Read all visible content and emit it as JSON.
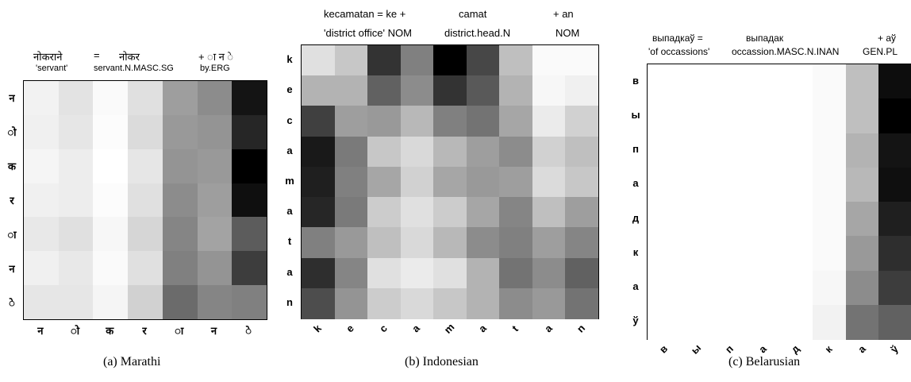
{
  "chart_data": [
    {
      "type": "heatmap",
      "caption": "(a) Marathi",
      "header": [
        {
          "big": "नोकराने",
          "small": "'servant'"
        },
        {
          "big": "=",
          "small": ""
        },
        {
          "big": "नोकर",
          "small": "servant.N.MASC.SG"
        },
        {
          "big": "+ ा न े",
          "small": "by.ERG"
        }
      ],
      "rows": [
        "न",
        "ो",
        "क",
        "र",
        "ा",
        "न",
        "े"
      ],
      "cols": [
        "न",
        "ो",
        "क",
        "र",
        "ा",
        "न",
        "े"
      ],
      "values": [
        [
          0.05,
          0.11,
          0.02,
          0.12,
          0.38,
          0.45,
          0.92
        ],
        [
          0.06,
          0.1,
          0.01,
          0.14,
          0.4,
          0.42,
          0.85
        ],
        [
          0.04,
          0.07,
          0.0,
          0.1,
          0.42,
          0.4,
          1.0
        ],
        [
          0.06,
          0.07,
          0.01,
          0.12,
          0.45,
          0.38,
          0.94
        ],
        [
          0.09,
          0.12,
          0.03,
          0.16,
          0.48,
          0.36,
          0.64
        ],
        [
          0.06,
          0.09,
          0.02,
          0.12,
          0.5,
          0.42,
          0.76
        ],
        [
          0.1,
          0.1,
          0.04,
          0.18,
          0.58,
          0.48,
          0.5
        ]
      ]
    },
    {
      "type": "heatmap",
      "caption": "(b) Indonesian",
      "header": [
        {
          "big": "kecamatan = ke +",
          "small": "'district office' NOM"
        },
        {
          "big": "camat",
          "small": "district.head.N"
        },
        {
          "big": "+ an",
          "small": "NOM"
        }
      ],
      "rows": [
        "k",
        "e",
        "c",
        "a",
        "m",
        "a",
        "t",
        "a",
        "n"
      ],
      "cols": [
        "k",
        "e",
        "c",
        "a",
        "m",
        "a",
        "t",
        "a",
        "n"
      ],
      "values": [
        [
          0.12,
          0.22,
          0.8,
          0.5,
          1.0,
          0.72,
          0.25,
          0.02,
          0.02
        ],
        [
          0.3,
          0.3,
          0.62,
          0.45,
          0.8,
          0.65,
          0.3,
          0.03,
          0.06
        ],
        [
          0.75,
          0.38,
          0.4,
          0.28,
          0.5,
          0.55,
          0.35,
          0.08,
          0.18
        ],
        [
          0.9,
          0.52,
          0.22,
          0.15,
          0.28,
          0.38,
          0.45,
          0.18,
          0.25
        ],
        [
          0.88,
          0.5,
          0.35,
          0.18,
          0.35,
          0.4,
          0.38,
          0.14,
          0.22
        ],
        [
          0.85,
          0.52,
          0.2,
          0.12,
          0.2,
          0.35,
          0.48,
          0.25,
          0.38
        ],
        [
          0.5,
          0.4,
          0.25,
          0.15,
          0.28,
          0.45,
          0.5,
          0.38,
          0.48
        ],
        [
          0.82,
          0.48,
          0.12,
          0.08,
          0.12,
          0.3,
          0.55,
          0.45,
          0.62
        ],
        [
          0.7,
          0.42,
          0.2,
          0.15,
          0.22,
          0.3,
          0.45,
          0.4,
          0.55
        ]
      ]
    },
    {
      "type": "heatmap",
      "caption": "(c) Belarusian",
      "header": [
        {
          "big": "выпадкаў =",
          "small": "'of occassions'"
        },
        {
          "big": "выпадак",
          "small": "occassion.MASC.N.INAN"
        },
        {
          "big": "+ аў",
          "small": "GEN.PL"
        }
      ],
      "rows": [
        "в",
        "ы",
        "п",
        "а",
        "д",
        "к",
        "а",
        "ў"
      ],
      "cols": [
        "в",
        "ы",
        "п",
        "а",
        "д",
        "к",
        "а",
        "ў"
      ],
      "values": [
        [
          0,
          0,
          0,
          0,
          0,
          0.02,
          0.25,
          0.95
        ],
        [
          0,
          0,
          0,
          0,
          0,
          0.02,
          0.25,
          1.0
        ],
        [
          0,
          0,
          0,
          0,
          0,
          0.02,
          0.3,
          0.92
        ],
        [
          0,
          0,
          0,
          0,
          0,
          0.02,
          0.28,
          0.94
        ],
        [
          0,
          0,
          0,
          0,
          0,
          0.02,
          0.35,
          0.88
        ],
        [
          0,
          0,
          0,
          0,
          0,
          0.02,
          0.4,
          0.82
        ],
        [
          0,
          0,
          0,
          0,
          0,
          0.03,
          0.45,
          0.76
        ],
        [
          0,
          0,
          0,
          0,
          0,
          0.05,
          0.55,
          0.62
        ]
      ]
    }
  ]
}
